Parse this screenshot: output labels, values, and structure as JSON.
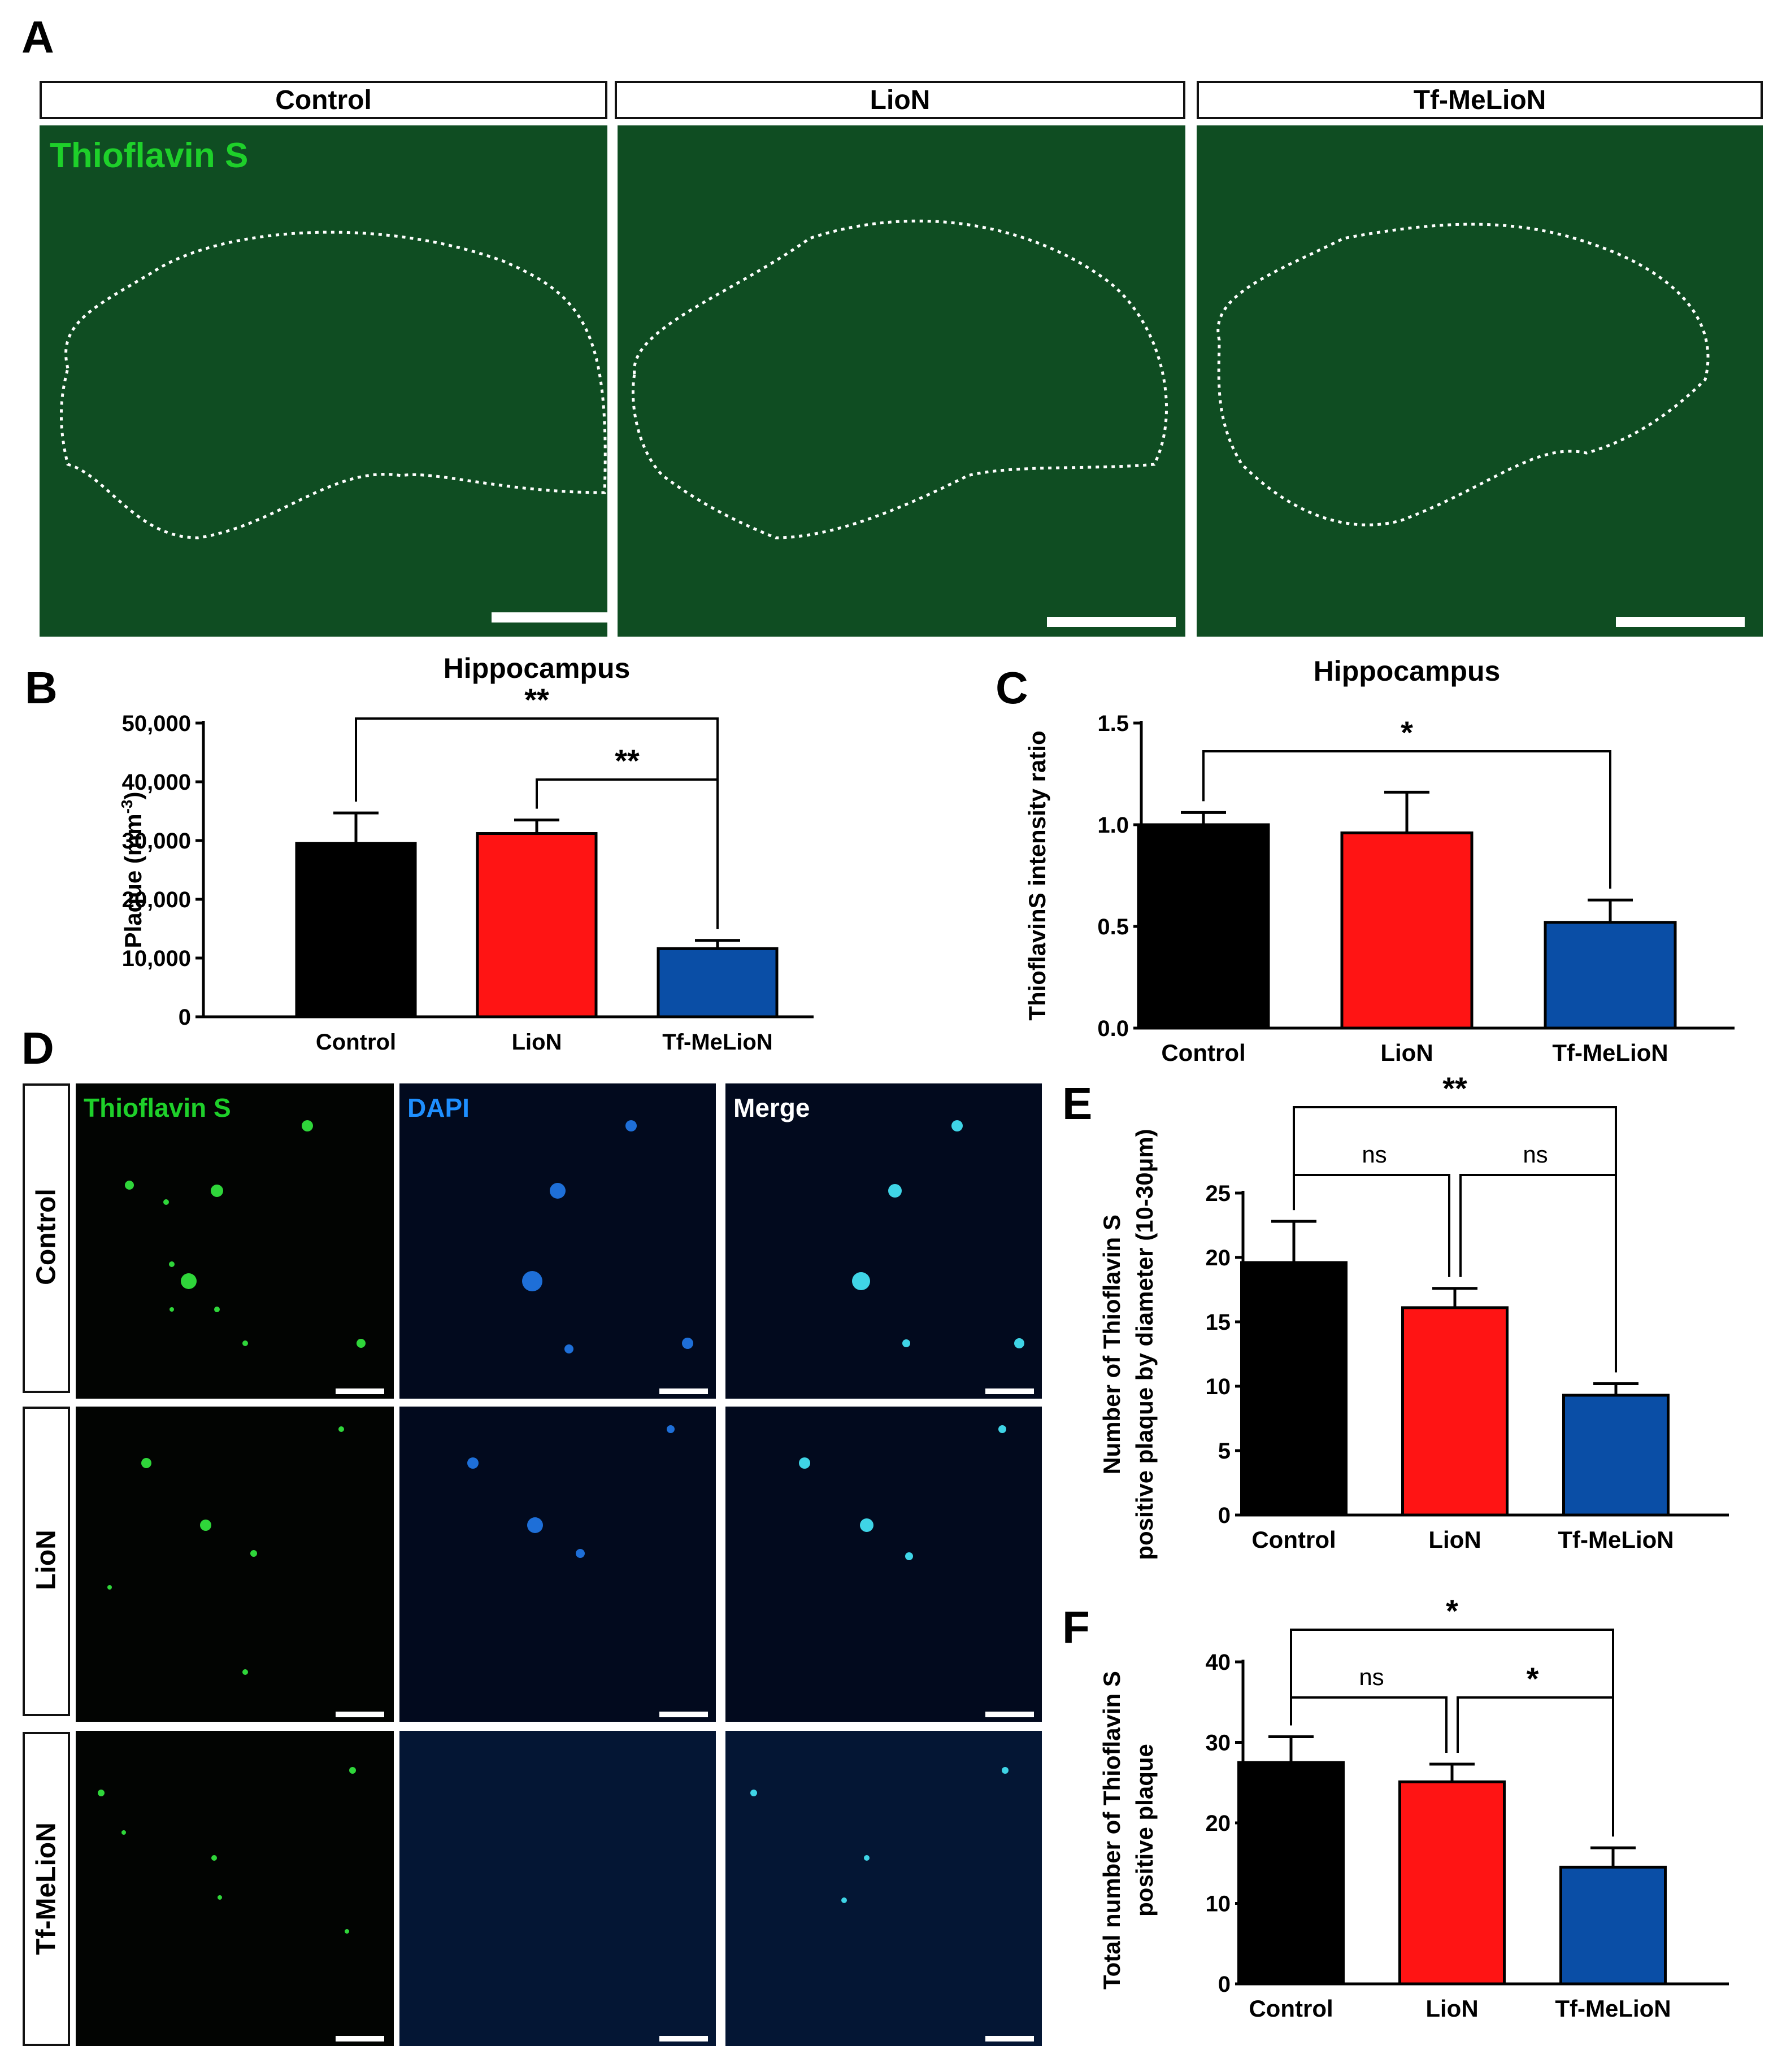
{
  "panels": {
    "a": {
      "letter": "A",
      "headers": [
        "Control",
        "LioN",
        "Tf-MeLioN"
      ],
      "stain_label": "Thioflavin S",
      "stain_color": "#1ed02a"
    },
    "b": {
      "letter": "B"
    },
    "c": {
      "letter": "C"
    },
    "d": {
      "letter": "D",
      "row_labels": [
        "Control",
        "LioN",
        "Tf-MeLioN"
      ],
      "channel_labels": [
        "Thioflavin S",
        "DAPI",
        "Merge"
      ],
      "channel_colors": [
        "#1ed02a",
        "#1e8fff",
        "#ffffff"
      ]
    },
    "e": {
      "letter": "E"
    },
    "f": {
      "letter": "F"
    }
  },
  "colors": {
    "control": "#000000",
    "lion": "#ff1414",
    "tfmelion": "#0a4ea6"
  },
  "chart_data": [
    {
      "id": "B",
      "type": "bar",
      "title": "Hippocampus",
      "ylabel": "Plaque (mm",
      "ylabel_sup": "-3",
      "ylabel_close": ")",
      "categories": [
        "Control",
        "LioN",
        "Tf-MeLioN"
      ],
      "values": [
        29500,
        31200,
        11600
      ],
      "errors": [
        5200,
        2300,
        1400
      ],
      "ylim": [
        0,
        50000
      ],
      "yticks": [
        "0",
        "10,000",
        "20,000",
        "30,000",
        "40,000",
        "50,000"
      ],
      "significance": [
        {
          "pair": [
            0,
            2
          ],
          "label": "**"
        },
        {
          "pair": [
            1,
            2
          ],
          "label": "**"
        }
      ]
    },
    {
      "id": "C",
      "type": "bar",
      "title": "Hippocampus",
      "ylabel": "ThioflavinS intensity ratio",
      "categories": [
        "Control",
        "LioN",
        "Tf-MeLioN"
      ],
      "values": [
        1.0,
        0.96,
        0.52
      ],
      "errors": [
        0.06,
        0.2,
        0.11
      ],
      "ylim": [
        0,
        1.5
      ],
      "yticks": [
        "0.0",
        "0.5",
        "1.0",
        "1.5"
      ],
      "significance": [
        {
          "pair": [
            0,
            2
          ],
          "label": "*"
        }
      ]
    },
    {
      "id": "E",
      "type": "bar",
      "title": "",
      "ylabel": "Number of Thioflavin S",
      "ylabel2": "positive plaque by diameter (10-30μm)",
      "categories": [
        "Control",
        "LioN",
        "Tf-MeLioN"
      ],
      "values": [
        19.6,
        16.1,
        9.3
      ],
      "errors": [
        3.2,
        1.5,
        0.9
      ],
      "ylim": [
        0,
        25
      ],
      "yticks": [
        "0",
        "5",
        "10",
        "15",
        "20",
        "25"
      ],
      "significance": [
        {
          "pair": [
            0,
            2
          ],
          "label": "**"
        },
        {
          "pair": [
            0,
            1
          ],
          "label": "ns"
        },
        {
          "pair": [
            1,
            2
          ],
          "label": "ns"
        }
      ]
    },
    {
      "id": "F",
      "type": "bar",
      "title": "",
      "ylabel": "Total number of Thioflavin S",
      "ylabel2": "positive plaque",
      "categories": [
        "Control",
        "LioN",
        "Tf-MeLioN"
      ],
      "values": [
        27.5,
        25.1,
        14.5
      ],
      "errors": [
        3.2,
        2.2,
        2.4
      ],
      "ylim": [
        0,
        40
      ],
      "yticks": [
        "0",
        "10",
        "20",
        "30",
        "40"
      ],
      "significance": [
        {
          "pair": [
            0,
            2
          ],
          "label": "*"
        },
        {
          "pair": [
            0,
            1
          ],
          "label": "ns"
        },
        {
          "pair": [
            1,
            2
          ],
          "label": "*"
        }
      ]
    }
  ]
}
